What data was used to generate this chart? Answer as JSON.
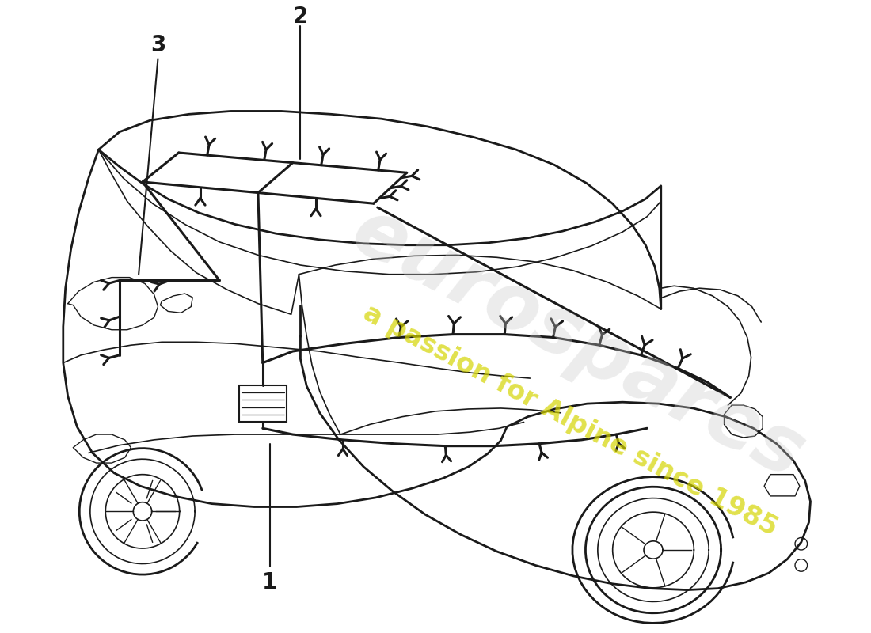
{
  "background_color": "#ffffff",
  "line_color": "#1a1a1a",
  "watermark_text1": "eurospares",
  "watermark_text2": "a passion for Alpine since 1985",
  "watermark_color1": "#c8c8c8",
  "watermark_color2": "#d4d400",
  "figsize": [
    11.0,
    8.0
  ],
  "dpi": 100
}
